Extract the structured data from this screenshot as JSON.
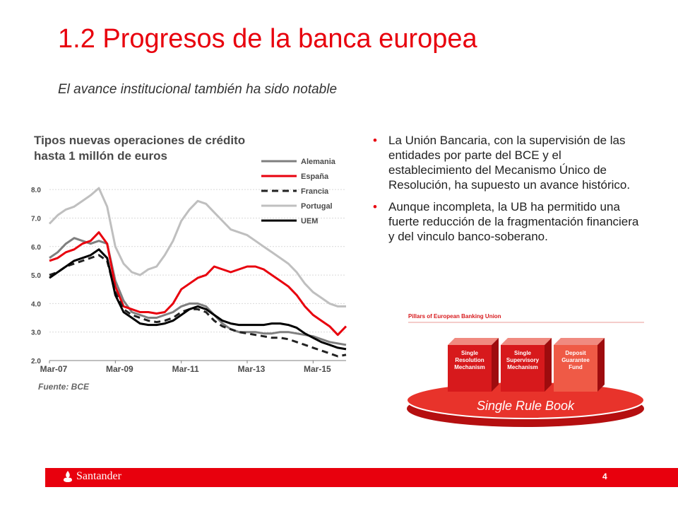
{
  "slide": {
    "title": "1.2 Progresos de la banca europea",
    "subtitle": "El avance institucional también ha sido notable",
    "page_number": "4"
  },
  "chart_data": {
    "type": "line",
    "title": "Tipos nuevas operaciones de crédito hasta 1  millón de euros",
    "xlabel": "",
    "ylabel": "",
    "source": "Fuente: BCE",
    "x_ticks": [
      "Mar-07",
      "Mar-09",
      "Mar-11",
      "Mar-13",
      "Mar-15"
    ],
    "y_ticks": [
      "8.0",
      "7.0",
      "6.0",
      "5.0",
      "4.0",
      "3.0",
      "2.0"
    ],
    "ylim": [
      2.0,
      8.5
    ],
    "grid": "horizontal",
    "legend_position": "top-right",
    "x_years": [
      2007.0,
      2007.25,
      2007.5,
      2007.75,
      2008.0,
      2008.25,
      2008.5,
      2008.75,
      2009.0,
      2009.25,
      2009.5,
      2009.75,
      2010.0,
      2010.25,
      2010.5,
      2010.75,
      2011.0,
      2011.25,
      2011.5,
      2011.75,
      2012.0,
      2012.25,
      2012.5,
      2012.75,
      2013.0,
      2013.25,
      2013.5,
      2013.75,
      2014.0,
      2014.25,
      2014.5,
      2014.75,
      2015.0,
      2015.25,
      2015.5,
      2015.75,
      2016.0
    ],
    "series": [
      {
        "name": "Alemania",
        "color": "#7f7f7f",
        "dash": "solid",
        "values": [
          5.6,
          5.8,
          6.1,
          6.3,
          6.2,
          6.1,
          6.2,
          6.1,
          4.8,
          4.1,
          3.7,
          3.6,
          3.5,
          3.5,
          3.6,
          3.7,
          3.9,
          4.0,
          4.0,
          3.9,
          3.6,
          3.3,
          3.1,
          3.0,
          3.0,
          3.0,
          2.95,
          2.95,
          3.0,
          3.0,
          2.95,
          2.9,
          2.85,
          2.75,
          2.65,
          2.6,
          2.55
        ]
      },
      {
        "name": "España",
        "color": "#e8000d",
        "dash": "solid",
        "values": [
          5.5,
          5.6,
          5.8,
          5.9,
          6.1,
          6.2,
          6.5,
          6.1,
          4.6,
          3.9,
          3.8,
          3.7,
          3.7,
          3.65,
          3.7,
          4.0,
          4.5,
          4.7,
          4.9,
          5.0,
          5.3,
          5.2,
          5.1,
          5.2,
          5.3,
          5.3,
          5.2,
          5.0,
          4.8,
          4.6,
          4.3,
          3.9,
          3.6,
          3.4,
          3.2,
          2.9,
          3.2
        ]
      },
      {
        "name": "Francia",
        "color": "#222222",
        "dash": "dashed",
        "values": [
          5.0,
          5.1,
          5.3,
          5.4,
          5.5,
          5.6,
          5.7,
          5.5,
          4.4,
          3.8,
          3.6,
          3.5,
          3.4,
          3.35,
          3.4,
          3.5,
          3.7,
          3.8,
          3.8,
          3.7,
          3.4,
          3.2,
          3.1,
          3.0,
          2.95,
          2.9,
          2.85,
          2.8,
          2.8,
          2.75,
          2.65,
          2.55,
          2.45,
          2.35,
          2.25,
          2.15,
          2.2
        ]
      },
      {
        "name": "Portugal",
        "color": "#bfbfbf",
        "dash": "solid",
        "values": [
          6.8,
          7.1,
          7.3,
          7.4,
          7.6,
          7.8,
          8.05,
          7.4,
          6.0,
          5.4,
          5.1,
          5.0,
          5.2,
          5.3,
          5.7,
          6.2,
          6.9,
          7.3,
          7.6,
          7.5,
          7.2,
          6.9,
          6.6,
          6.5,
          6.4,
          6.2,
          6.0,
          5.8,
          5.6,
          5.4,
          5.1,
          4.7,
          4.4,
          4.2,
          4.0,
          3.9,
          3.9
        ]
      },
      {
        "name": "UEM",
        "color": "#000000",
        "dash": "solid",
        "values": [
          4.9,
          5.1,
          5.3,
          5.5,
          5.6,
          5.7,
          5.9,
          5.6,
          4.3,
          3.7,
          3.5,
          3.3,
          3.25,
          3.25,
          3.3,
          3.4,
          3.6,
          3.8,
          3.9,
          3.8,
          3.6,
          3.4,
          3.3,
          3.25,
          3.25,
          3.25,
          3.25,
          3.3,
          3.3,
          3.25,
          3.15,
          2.95,
          2.8,
          2.65,
          2.55,
          2.45,
          2.4
        ]
      }
    ]
  },
  "bullets": [
    "La Unión Bancaria, con la supervisión de las entidades por parte del BCE y el establecimiento del Mecanismo Único de Resolución, ha supuesto un avance histórico.",
    "Aunque incompleta, la UB ha permitido una fuerte reducción de la fragmentación financiera y del vinculo banco-soberano."
  ],
  "pillars": {
    "header": "Pillars of European Banking Union",
    "base_label": "Single Rule Book",
    "blocks": [
      {
        "lines": [
          "Single",
          "Resolution",
          "Mechanism"
        ],
        "color": "#d7191c"
      },
      {
        "lines": [
          "Single",
          "Supervisory",
          "Mechanism"
        ],
        "color": "#d7191c"
      },
      {
        "lines": [
          "Deposit",
          "Guarantee",
          "Fund"
        ],
        "color": "#ef5a46"
      }
    ]
  },
  "footer": {
    "brand": "Santander",
    "logo_icon": "santander-flame-icon"
  }
}
